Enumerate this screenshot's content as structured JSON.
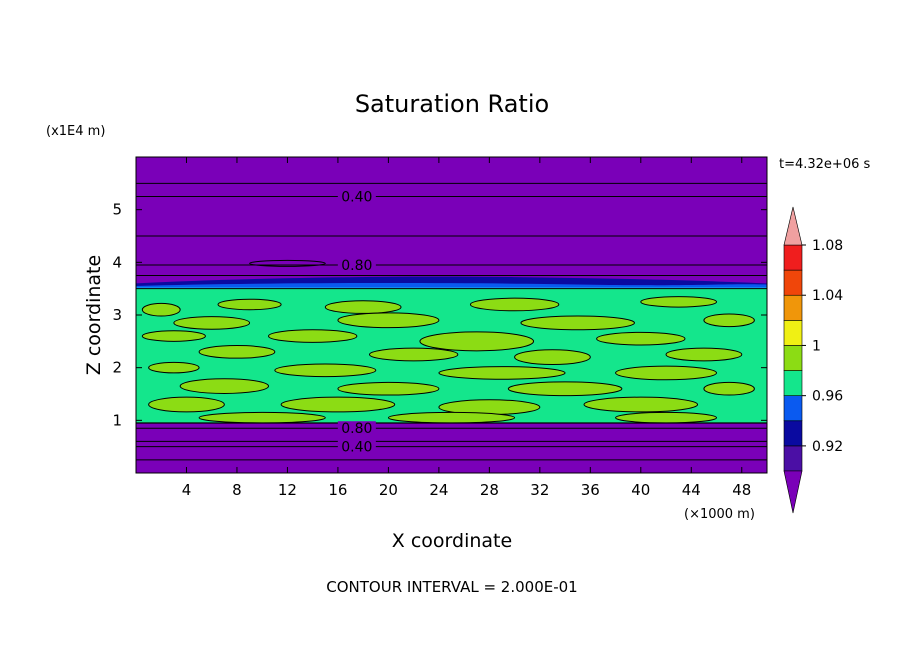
{
  "chart_data": {
    "type": "heatmap",
    "title": "Saturation Ratio",
    "xlabel": "X coordinate",
    "ylabel": "Z coordinate",
    "x_unit": "(×1000 m)",
    "y_unit": "(x1E4 m)",
    "time_label": "t=4.32e+06 s",
    "footer": "CONTOUR INTERVAL = 2.000E-01",
    "xlim": [
      0,
      50
    ],
    "ylim": [
      0,
      6
    ],
    "x_ticks": [
      4,
      8,
      12,
      16,
      20,
      24,
      28,
      32,
      36,
      40,
      44,
      48
    ],
    "y_ticks": [
      1,
      2,
      3,
      4,
      5
    ],
    "contour_labels": [
      {
        "text": "0.40",
        "x": 17.5,
        "y": 5.25
      },
      {
        "text": "0.80",
        "x": 17.5,
        "y": 3.95
      },
      {
        "text": "0.80",
        "x": 17.5,
        "y": 0.85
      },
      {
        "text": "0.40",
        "x": 17.5,
        "y": 0.5
      }
    ],
    "colorbar": {
      "levels": [
        0.92,
        0.96,
        1,
        1.04,
        1.08
      ],
      "tick_labels": [
        "0.92",
        "0.96",
        "1",
        "1.04",
        "1.08"
      ],
      "colors": [
        "#4B0FA5",
        "#0A0AA0",
        "#0A5AF0",
        "#14E68C",
        "#8CDC14",
        "#F0F014",
        "#F0960A",
        "#F0460A",
        "#F01E1E",
        "#F0A0A0"
      ],
      "under_color": "#7A00B8",
      "over_color": "#F0A0A0"
    },
    "background_color": "#7A00B8",
    "band_colors": {
      "low_s": "#0A0AA0",
      "mid_low_s": "#0A5AF0",
      "moist": "#14E68C",
      "near_one": "#8CDC14",
      "cyan_edge": "#14DCF0"
    }
  }
}
